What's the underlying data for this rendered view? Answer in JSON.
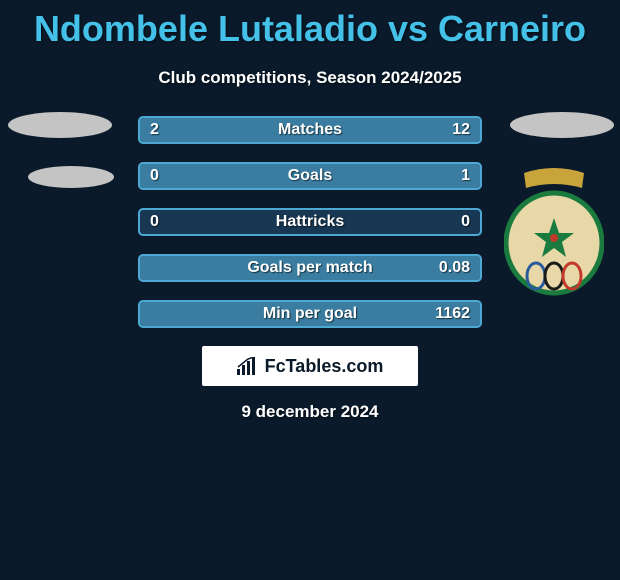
{
  "colors": {
    "background": "#0a1a2a",
    "title": "#44c1e8",
    "text": "#ffffff",
    "bar_bg": "#173752",
    "bar_border": "#4ea8d4",
    "bar_fill": "#3a7da0",
    "placeholder": "#c4c4c4",
    "badge_bg": "#ffffff",
    "crest_green": "#1b7a3e",
    "crest_gold": "#c9a43a",
    "crest_red": "#c0392b"
  },
  "title": "Ndombele Lutaladio vs Carneiro",
  "subtitle": "Club competitions, Season 2024/2025",
  "bars": [
    {
      "label": "Matches",
      "left": "2",
      "right": "12",
      "leftPct": 14,
      "rightPct": 86
    },
    {
      "label": "Goals",
      "left": "0",
      "right": "1",
      "leftPct": 0,
      "rightPct": 100
    },
    {
      "label": "Hattricks",
      "left": "0",
      "right": "0",
      "leftPct": 0,
      "rightPct": 0
    },
    {
      "label": "Goals per match",
      "left": "",
      "right": "0.08",
      "leftPct": 0,
      "rightPct": 100
    },
    {
      "label": "Min per goal",
      "left": "",
      "right": "1162",
      "leftPct": 0,
      "rightPct": 100
    }
  ],
  "badge_text": "FcTables.com",
  "footer_date": "9 december 2024"
}
